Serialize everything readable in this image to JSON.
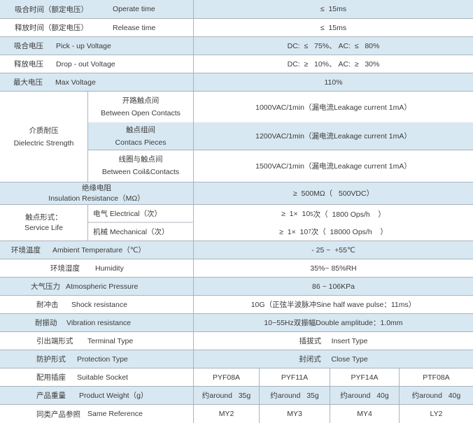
{
  "rows": [
    {
      "cn": "吸合时间（额定电压）",
      "en": "Operate time",
      "value": "≤  15ms"
    },
    {
      "cn": "释放时间（额定电压）",
      "en": "Release time",
      "value": "≤  15ms"
    },
    {
      "cn": "吸合电压",
      "en": "Pick  - up Voltage",
      "value": "DC:  ≤   75%、 AC:  ≤   80%"
    },
    {
      "cn": "释放电压",
      "en": "Drop - out   Voltage",
      "value": "DC:  ≥   10%、 AC:  ≥   30%"
    },
    {
      "cn": "最大电压",
      "en": "Max Voltage",
      "value": "110%"
    }
  ],
  "dielectric": {
    "cn": "介质耐压",
    "en": "Dielectric  Strength",
    "items": [
      {
        "cn": "开路触点间",
        "en": "Between Open  Contacts",
        "value": "1000VAC/1min（漏电流Leakage current 1mA）"
      },
      {
        "cn": "触点组间",
        "en": "Contacs Pieces",
        "value": "1200VAC/1min（漏电流Leakage current 1mA）"
      },
      {
        "cn": "线圈与触点间",
        "en": "Between  Coil&Contacts",
        "value": "1500VAC/1min（漏电流Leakage current 1mA）"
      }
    ]
  },
  "insulation": {
    "cn": "绝缘电阻",
    "en": "Insulation Resistance（MΩ）",
    "value": "≥  500MΩ（   500VDC）"
  },
  "service_life": {
    "cn": "触点形式：",
    "en": "Service Life",
    "electrical": {
      "label": "电气 Electrical（次）",
      "pre": "≥  1×  10",
      "exp": "5",
      "post": "次（  1800 Ops/h    ）"
    },
    "mechanical": {
      "label": "机械  Mechanical（次）",
      "pre": "≥  1×  10",
      "exp": "7",
      "post": "次（  18000 Ops/h    ）"
    }
  },
  "rows2": [
    {
      "cn": "环境温度",
      "en": "Ambient Temperature（℃）",
      "value": "- 25 ~  +55℃"
    },
    {
      "cn": "环境湿度",
      "en": "Humidity",
      "value": "35%~ 85%RH"
    },
    {
      "cn": "大气压力",
      "en": "Atmospheric Pressure",
      "value": "86 ~ 106KPa"
    },
    {
      "cn": "耐冲击",
      "en": "Shock resistance",
      "value": "10G（正弦半波脉冲Sine half wave pulse：11ms）"
    },
    {
      "cn": "耐振动",
      "en": "Vibration resistance",
      "value": "10~55Hz双振幅Double amplitude：1.0mm"
    },
    {
      "cn": "引出端形式",
      "en": "Terminal Type",
      "value": "插拔式     Insert Type"
    },
    {
      "cn": "防护形式",
      "en": "Protection Type",
      "value": "封闭式     Close Type"
    }
  ],
  "models": [
    {
      "cn": "配用插座",
      "en": "Suitable Socket",
      "values": [
        "PYF08A",
        "PYF11A",
        "PYF14A",
        "PTF08A"
      ]
    },
    {
      "cn": "产品重量",
      "en": "Product Weight（g）",
      "values": [
        "约around   35g",
        "约around   35g",
        "约around   40g",
        "约around   40g"
      ]
    },
    {
      "cn": "同类产品参照",
      "en": "Same Reference",
      "values": [
        "MY2",
        "MY3",
        "MY4",
        "LY2"
      ]
    }
  ]
}
